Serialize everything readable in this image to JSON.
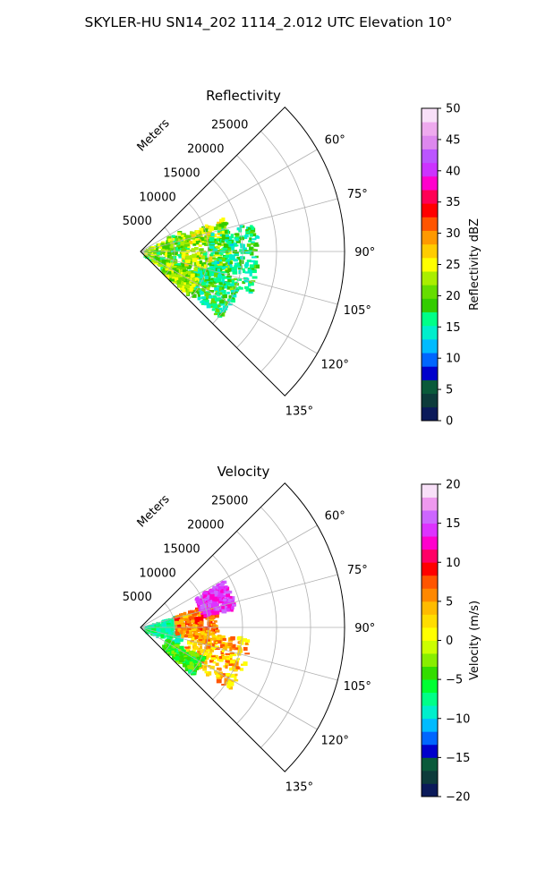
{
  "title": "SKYLER-HU  SN14_202  1114_2.012 UTC Elevation 10°",
  "chart_data": [
    {
      "type": "polar-sector",
      "title": "Reflectivity",
      "range_axis_label": "Meters",
      "range_ticks": [
        5000,
        10000,
        15000,
        20000,
        25000
      ],
      "range_tick_labels": [
        "5000",
        "10000",
        "15000",
        "20000",
        "25000"
      ],
      "range_max_m": 30000,
      "azimuth_min_deg": 45,
      "azimuth_max_deg": 135,
      "azimuth_ticks_deg": [
        60,
        75,
        90,
        105,
        120,
        135
      ],
      "azimuth_tick_labels": [
        "60°",
        "75°",
        "90°",
        "105°",
        "120°",
        "135°"
      ],
      "grid": true,
      "colorbar": {
        "label": "Reflectivity dBZ",
        "min": 0,
        "max": 50,
        "ticks": [
          0,
          5,
          10,
          15,
          20,
          25,
          30,
          35,
          40,
          45,
          50
        ],
        "tick_labels": [
          "0",
          "5",
          "10",
          "15",
          "20",
          "25",
          "30",
          "35",
          "40",
          "45",
          "50"
        ],
        "stops": [
          "#0b1a5a",
          "#0d3b3b",
          "#0a5a3a",
          "#0000cc",
          "#0066ff",
          "#00bbff",
          "#00eecc",
          "#00ff88",
          "#33cc00",
          "#66dd00",
          "#aaee00",
          "#ffff00",
          "#ffcc00",
          "#ff9900",
          "#ff5500",
          "#ff0000",
          "#ff0055",
          "#ff00cc",
          "#cc33ff",
          "#bb55ff",
          "#dd88ee",
          "#eeaaee",
          "#f8e0f8"
        ]
      },
      "echo_regions": [
        {
          "r_min": 500,
          "r_max": 7000,
          "az_min": 60,
          "az_max": 130,
          "value_range": [
            15,
            25
          ]
        },
        {
          "r_min": 6000,
          "r_max": 13000,
          "az_min": 67,
          "az_max": 106,
          "value_range": [
            17,
            27
          ]
        },
        {
          "r_min": 10000,
          "r_max": 17000,
          "az_min": 75,
          "az_max": 112,
          "value_range": [
            13,
            20
          ]
        },
        {
          "r_min": 7000,
          "r_max": 15000,
          "az_min": 105,
          "az_max": 130,
          "value_range": [
            13,
            22
          ]
        },
        {
          "r_min": 4000,
          "r_max": 9000,
          "az_min": 112,
          "az_max": 132,
          "value_range": [
            18,
            26
          ]
        }
      ]
    },
    {
      "type": "polar-sector",
      "title": "Velocity",
      "range_axis_label": "Meters",
      "range_ticks": [
        5000,
        10000,
        15000,
        20000,
        25000
      ],
      "range_tick_labels": [
        "5000",
        "10000",
        "15000",
        "20000",
        "25000"
      ],
      "range_max_m": 30000,
      "azimuth_min_deg": 45,
      "azimuth_max_deg": 135,
      "azimuth_ticks_deg": [
        60,
        75,
        90,
        105,
        120,
        135
      ],
      "azimuth_tick_labels": [
        "60°",
        "75°",
        "90°",
        "105°",
        "120°",
        "135°"
      ],
      "grid": true,
      "colorbar": {
        "label": "Velocity (m/s)",
        "min": -20,
        "max": 20,
        "ticks": [
          -20,
          -15,
          -10,
          -5,
          0,
          5,
          10,
          15,
          20
        ],
        "tick_labels": [
          "−20",
          "−15",
          "−10",
          "−5",
          "0",
          "5",
          "10",
          "15",
          "20"
        ],
        "stops": [
          "#0b1a5a",
          "#0d3b3b",
          "#0a5a3a",
          "#0000cc",
          "#0066ff",
          "#00bbff",
          "#00eecc",
          "#00ff88",
          "#00ff33",
          "#33dd00",
          "#88ee00",
          "#ccff00",
          "#ffff00",
          "#ffdd00",
          "#ffbb00",
          "#ff8800",
          "#ff5500",
          "#ff0000",
          "#ff0066",
          "#ff00cc",
          "#dd33ff",
          "#cc66ff",
          "#ee99ee",
          "#f8e0f8"
        ]
      },
      "echo_regions": [
        {
          "r_min": 500,
          "r_max": 6000,
          "az_min": 70,
          "az_max": 115,
          "value_range": [
            -10,
            -6
          ]
        },
        {
          "r_min": 5000,
          "r_max": 11000,
          "az_min": 70,
          "az_max": 100,
          "value_range": [
            3,
            9
          ]
        },
        {
          "r_min": 9000,
          "r_max": 14000,
          "az_min": 60,
          "az_max": 78,
          "value_range": [
            12,
            16
          ]
        },
        {
          "r_min": 7000,
          "r_max": 16000,
          "az_min": 95,
          "az_max": 125,
          "value_range": [
            0,
            8
          ]
        },
        {
          "r_min": 4000,
          "r_max": 10000,
          "az_min": 115,
          "az_max": 132,
          "value_range": [
            -7,
            -2
          ]
        }
      ]
    }
  ]
}
